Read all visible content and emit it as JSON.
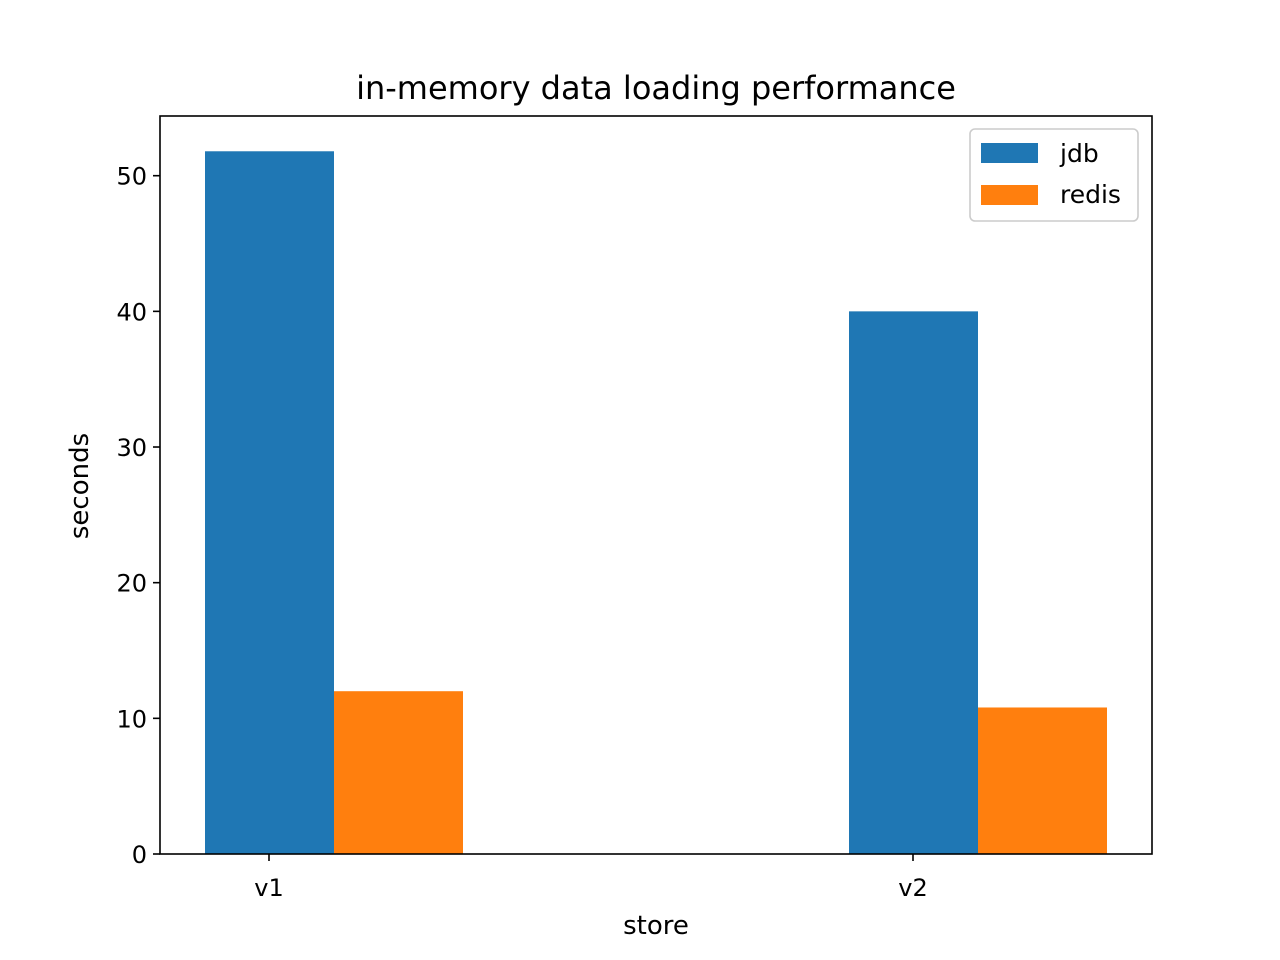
{
  "chart_data": {
    "type": "bar",
    "title": "in-memory data loading performance",
    "xlabel": "store",
    "ylabel": "seconds",
    "categories": [
      "v1",
      "v2"
    ],
    "series": [
      {
        "name": "jdb",
        "values": [
          51.8,
          40.0
        ],
        "color": "#1f77b4"
      },
      {
        "name": "redis",
        "values": [
          12.0,
          10.8
        ],
        "color": "#ff7f0e"
      }
    ],
    "ylim": [
      0,
      54.4
    ],
    "yticks": [
      0,
      10,
      20,
      30,
      40,
      50
    ],
    "grid": false,
    "legend_position": "top-right"
  }
}
